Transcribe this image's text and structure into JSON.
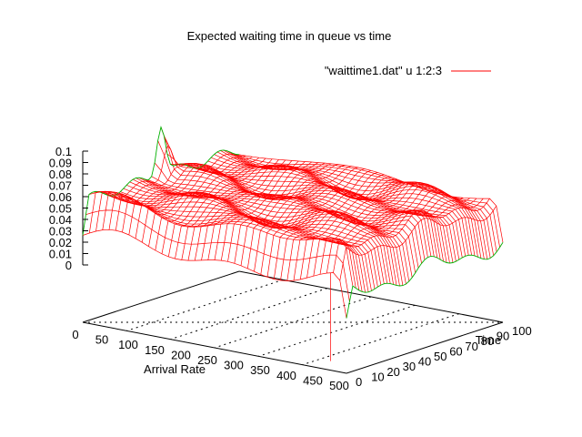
{
  "chart_data": {
    "type": "surface",
    "title": "Expected waiting time in queue vs time",
    "xlabel": "Arrival Rate",
    "ylabel": "Time",
    "zlabel": "",
    "xlim": [
      0,
      500
    ],
    "ylim": [
      0,
      100
    ],
    "zlim": [
      0,
      0.1
    ],
    "x_ticks": [
      "0",
      "50",
      "100",
      "150",
      "200",
      "250",
      "300",
      "350",
      "400",
      "450",
      "500"
    ],
    "y_ticks": [
      "0",
      "10",
      "20",
      "30",
      "40",
      "50",
      "60",
      "70",
      "80",
      "90",
      "100"
    ],
    "z_ticks": [
      "0",
      "0.01",
      "0.02",
      "0.03",
      "0.04",
      "0.05",
      "0.06",
      "0.07",
      "0.08",
      "0.09",
      "0.1"
    ],
    "grid": true,
    "legend_position": "top-right",
    "series": [
      {
        "name": "\"waittime1.dat\" u 1:2:3",
        "color": "#ff0000",
        "hidden_color": "#00b000",
        "plateau_value": 0.07,
        "peak_value": 0.1,
        "peak_at": {
          "x": 0,
          "y": 50
        }
      }
    ]
  }
}
